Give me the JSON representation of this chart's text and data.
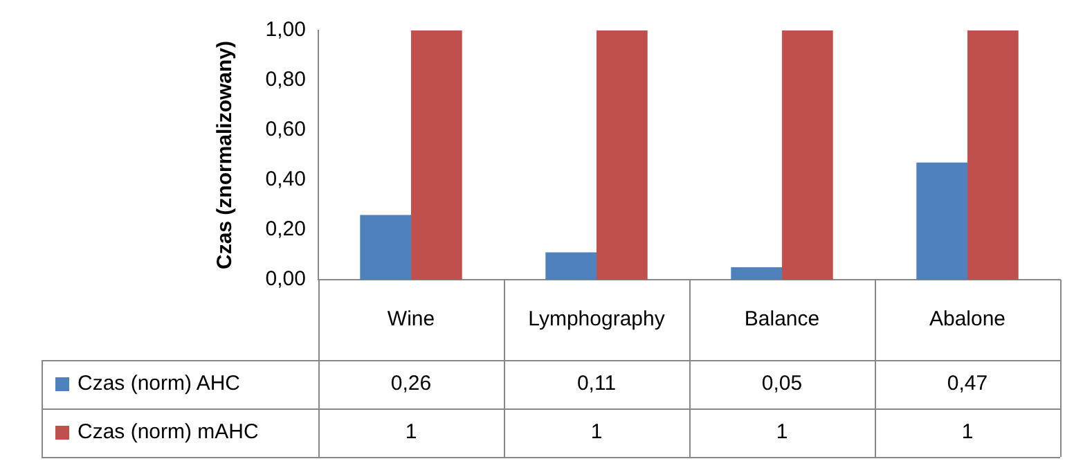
{
  "chart_data": {
    "type": "bar",
    "ylabel": "Czas (znormalizowany)",
    "categories": [
      "Wine",
      "Lymphography",
      "Balance",
      "Abalone"
    ],
    "series": [
      {
        "name": "Czas (norm) AHC",
        "color": "#4f81bd",
        "values": [
          0.26,
          0.11,
          0.05,
          0.47
        ],
        "value_labels": [
          "0,26",
          "0,11",
          "0,05",
          "0,47"
        ]
      },
      {
        "name": "Czas (norm) mAHC",
        "color": "#c0504d",
        "values": [
          1,
          1,
          1,
          1
        ],
        "value_labels": [
          "1",
          "1",
          "1",
          "1"
        ]
      }
    ],
    "ylim": [
      0,
      1
    ],
    "yticks": [
      {
        "value": 0,
        "label": "0,00"
      },
      {
        "value": 0.2,
        "label": "0,20"
      },
      {
        "value": 0.4,
        "label": "0,40"
      },
      {
        "value": 0.6,
        "label": "0,60"
      },
      {
        "value": 0.8,
        "label": "0,80"
      },
      {
        "value": 1,
        "label": "1,00"
      }
    ],
    "grid": false,
    "legend": "bottom"
  }
}
